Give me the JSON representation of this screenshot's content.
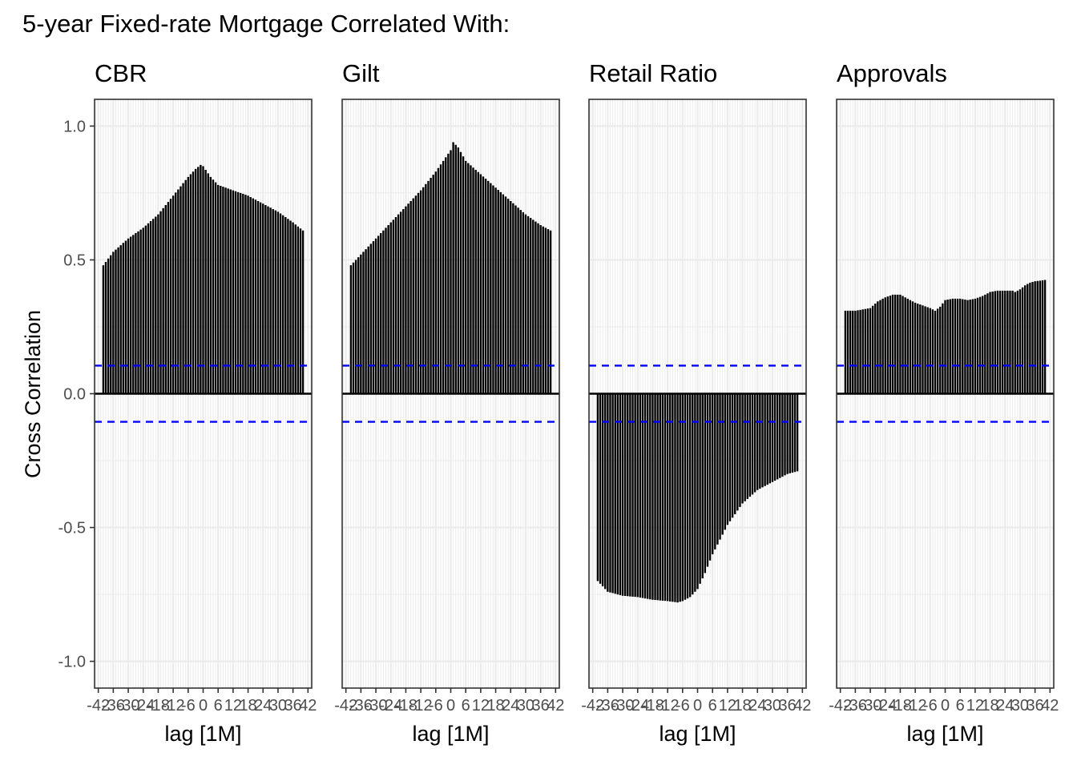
{
  "chart_data": {
    "type": "bar",
    "title": "5-year Fixed-rate Mortgage Correlated With:",
    "ylabel": "Cross Correlation",
    "xlabel": "lag [1M]",
    "ylim": [
      -1.1,
      1.1
    ],
    "xlim": [
      -43.5,
      43.5
    ],
    "y_ticks": [
      -1.0,
      -0.5,
      0.0,
      0.5,
      1.0
    ],
    "y_tick_labels": [
      "-1.0",
      "-0.5",
      "0.0",
      "0.5",
      "1.0"
    ],
    "x_ticks": [
      -42,
      -36,
      -30,
      -24,
      -18,
      -12,
      -6,
      0,
      6,
      12,
      18,
      24,
      30,
      36,
      42
    ],
    "x_tick_labels": [
      "-42",
      "-36",
      "-30",
      "-24",
      "-18",
      "-12",
      "-6",
      "0",
      "6",
      "12",
      "18",
      "24",
      "30",
      "36",
      "42"
    ],
    "lags": [
      -40,
      40
    ],
    "confidence_band": 0.105,
    "grid": true,
    "colors": {
      "bars": "#000000",
      "confidence": "#0000ff",
      "grid": "#ebebeb",
      "panel_border": "#333333"
    },
    "panels": [
      {
        "name": "CBR",
        "profile": [
          [
            -40,
            0.48
          ],
          [
            -36,
            0.53
          ],
          [
            -30,
            0.58
          ],
          [
            -24,
            0.62
          ],
          [
            -18,
            0.67
          ],
          [
            -12,
            0.74
          ],
          [
            -6,
            0.81
          ],
          [
            -3,
            0.84
          ],
          [
            -1,
            0.855
          ],
          [
            0,
            0.85
          ],
          [
            3,
            0.81
          ],
          [
            6,
            0.78
          ],
          [
            12,
            0.76
          ],
          [
            18,
            0.74
          ],
          [
            24,
            0.71
          ],
          [
            30,
            0.68
          ],
          [
            36,
            0.64
          ],
          [
            40,
            0.61
          ]
        ]
      },
      {
        "name": "Gilt",
        "profile": [
          [
            -40,
            0.48
          ],
          [
            -36,
            0.52
          ],
          [
            -30,
            0.58
          ],
          [
            -24,
            0.64
          ],
          [
            -18,
            0.7
          ],
          [
            -12,
            0.76
          ],
          [
            -6,
            0.83
          ],
          [
            -3,
            0.87
          ],
          [
            0,
            0.91
          ],
          [
            1,
            0.94
          ],
          [
            3,
            0.92
          ],
          [
            6,
            0.87
          ],
          [
            12,
            0.82
          ],
          [
            18,
            0.77
          ],
          [
            24,
            0.72
          ],
          [
            30,
            0.67
          ],
          [
            36,
            0.63
          ],
          [
            40,
            0.61
          ]
        ]
      },
      {
        "name": "Retail Ratio",
        "profile": [
          [
            -40,
            -0.7
          ],
          [
            -36,
            -0.74
          ],
          [
            -30,
            -0.755
          ],
          [
            -24,
            -0.76
          ],
          [
            -18,
            -0.77
          ],
          [
            -12,
            -0.775
          ],
          [
            -8,
            -0.78
          ],
          [
            -6,
            -0.775
          ],
          [
            -3,
            -0.76
          ],
          [
            0,
            -0.73
          ],
          [
            3,
            -0.67
          ],
          [
            6,
            -0.6
          ],
          [
            12,
            -0.49
          ],
          [
            18,
            -0.41
          ],
          [
            24,
            -0.36
          ],
          [
            30,
            -0.33
          ],
          [
            36,
            -0.3
          ],
          [
            40,
            -0.29
          ]
        ]
      },
      {
        "name": "Approvals",
        "profile": [
          [
            -40,
            0.31
          ],
          [
            -36,
            0.31
          ],
          [
            -33,
            0.315
          ],
          [
            -30,
            0.32
          ],
          [
            -27,
            0.345
          ],
          [
            -24,
            0.36
          ],
          [
            -21,
            0.37
          ],
          [
            -18,
            0.37
          ],
          [
            -15,
            0.355
          ],
          [
            -12,
            0.34
          ],
          [
            -9,
            0.33
          ],
          [
            -6,
            0.32
          ],
          [
            -4,
            0.31
          ],
          [
            -2,
            0.325
          ],
          [
            0,
            0.35
          ],
          [
            3,
            0.355
          ],
          [
            6,
            0.355
          ],
          [
            9,
            0.35
          ],
          [
            12,
            0.355
          ],
          [
            15,
            0.365
          ],
          [
            18,
            0.38
          ],
          [
            21,
            0.385
          ],
          [
            24,
            0.385
          ],
          [
            27,
            0.385
          ],
          [
            28,
            0.38
          ],
          [
            30,
            0.39
          ],
          [
            32,
            0.405
          ],
          [
            34,
            0.415
          ],
          [
            36,
            0.42
          ],
          [
            40,
            0.425
          ]
        ]
      }
    ]
  }
}
